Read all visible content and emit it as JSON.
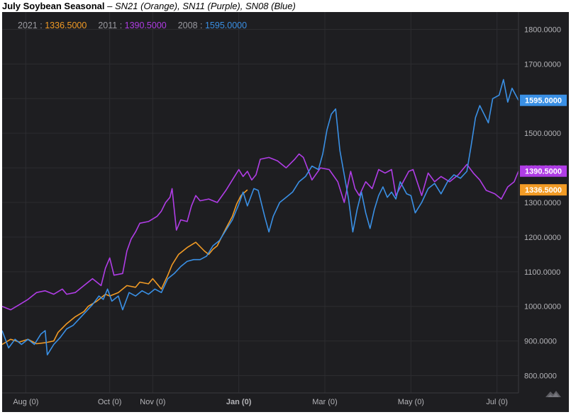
{
  "header": {
    "title": "July Soybean Seasonal",
    "separator": " – ",
    "subtitle": "SN21 (Orange), SN11 (Purple), SN08 (Blue)"
  },
  "chart_data": {
    "type": "line",
    "title": "July Soybean Seasonal",
    "subtitle": "SN21 (Orange), SN11 (Purple), SN08 (Blue)",
    "xlabel": "",
    "ylabel": "",
    "ylim": [
      750,
      1850
    ],
    "xlim": [
      0,
      12
    ],
    "x_ticks": [
      {
        "label": "Aug (0)",
        "x": 0.55
      },
      {
        "label": "Oct (0)",
        "x": 2.5
      },
      {
        "label": "Nov (0)",
        "x": 3.5
      },
      {
        "label": "Jan (0)",
        "x": 5.5
      },
      {
        "label": "Mar (0)",
        "x": 7.5
      },
      {
        "label": "May (0)",
        "x": 9.5
      },
      {
        "label": "Jul (0)",
        "x": 11.5
      }
    ],
    "y_ticks": [
      800,
      900,
      1000,
      1100,
      1200,
      1300,
      1400,
      1500,
      1600,
      1700,
      1800
    ],
    "y_tick_labels": [
      "800.0000",
      "900.0000",
      "1000.0000",
      "1100.0000",
      "1200.0000",
      "1300.0000",
      "1400.0000",
      "1500.0000",
      "1600.0000",
      "1700.0000",
      "1800.0000"
    ],
    "grid": true,
    "legend_position": "top-left",
    "series": [
      {
        "name": "2021",
        "last_value_label": "1336.5000",
        "color": "#f29b25",
        "points": [
          [
            0.0,
            890
          ],
          [
            0.2,
            905
          ],
          [
            0.4,
            897
          ],
          [
            0.6,
            905
          ],
          [
            0.8,
            892
          ],
          [
            1.0,
            895
          ],
          [
            1.2,
            900
          ],
          [
            1.3,
            925
          ],
          [
            1.5,
            950
          ],
          [
            1.7,
            970
          ],
          [
            1.9,
            985
          ],
          [
            2.0,
            1000
          ],
          [
            2.2,
            1015
          ],
          [
            2.4,
            1035
          ],
          [
            2.5,
            1030
          ],
          [
            2.7,
            1040
          ],
          [
            2.9,
            1060
          ],
          [
            3.1,
            1055
          ],
          [
            3.2,
            1070
          ],
          [
            3.4,
            1065
          ],
          [
            3.5,
            1080
          ],
          [
            3.7,
            1050
          ],
          [
            3.85,
            1090
          ],
          [
            3.95,
            1120
          ],
          [
            4.1,
            1150
          ],
          [
            4.3,
            1170
          ],
          [
            4.5,
            1185
          ],
          [
            4.7,
            1160
          ],
          [
            4.8,
            1150
          ],
          [
            4.9,
            1165
          ],
          [
            5.0,
            1175
          ],
          [
            5.2,
            1225
          ],
          [
            5.35,
            1260
          ],
          [
            5.45,
            1295
          ],
          [
            5.55,
            1320
          ],
          [
            5.7,
            1336.5
          ]
        ]
      },
      {
        "name": "2011",
        "last_value_label": "1390.5000",
        "color": "#b03de6",
        "points": [
          [
            0.0,
            1000
          ],
          [
            0.2,
            990
          ],
          [
            0.4,
            1005
          ],
          [
            0.6,
            1020
          ],
          [
            0.8,
            1040
          ],
          [
            1.0,
            1045
          ],
          [
            1.2,
            1035
          ],
          [
            1.4,
            1050
          ],
          [
            1.5,
            1035
          ],
          [
            1.7,
            1040
          ],
          [
            1.9,
            1060
          ],
          [
            2.1,
            1080
          ],
          [
            2.3,
            1060
          ],
          [
            2.4,
            1110
          ],
          [
            2.5,
            1140
          ],
          [
            2.6,
            1090
          ],
          [
            2.8,
            1095
          ],
          [
            2.9,
            1160
          ],
          [
            3.0,
            1195
          ],
          [
            3.1,
            1215
          ],
          [
            3.2,
            1240
          ],
          [
            3.4,
            1245
          ],
          [
            3.6,
            1260
          ],
          [
            3.7,
            1275
          ],
          [
            3.8,
            1300
          ],
          [
            3.9,
            1315
          ],
          [
            3.95,
            1340
          ],
          [
            4.05,
            1220
          ],
          [
            4.15,
            1250
          ],
          [
            4.3,
            1245
          ],
          [
            4.4,
            1290
          ],
          [
            4.5,
            1320
          ],
          [
            4.6,
            1305
          ],
          [
            4.8,
            1310
          ],
          [
            5.0,
            1300
          ],
          [
            5.2,
            1335
          ],
          [
            5.4,
            1375
          ],
          [
            5.5,
            1395
          ],
          [
            5.6,
            1375
          ],
          [
            5.7,
            1390
          ],
          [
            5.8,
            1365
          ],
          [
            5.9,
            1380
          ],
          [
            6.0,
            1425
          ],
          [
            6.2,
            1430
          ],
          [
            6.4,
            1420
          ],
          [
            6.6,
            1400
          ],
          [
            6.8,
            1425
          ],
          [
            6.9,
            1440
          ],
          [
            7.0,
            1430
          ],
          [
            7.2,
            1365
          ],
          [
            7.4,
            1400
          ],
          [
            7.6,
            1395
          ],
          [
            7.8,
            1360
          ],
          [
            7.95,
            1300
          ],
          [
            8.1,
            1390
          ],
          [
            8.2,
            1340
          ],
          [
            8.3,
            1320
          ],
          [
            8.45,
            1360
          ],
          [
            8.6,
            1340
          ],
          [
            8.75,
            1395
          ],
          [
            8.9,
            1385
          ],
          [
            9.05,
            1395
          ],
          [
            9.15,
            1320
          ],
          [
            9.3,
            1355
          ],
          [
            9.45,
            1390
          ],
          [
            9.55,
            1395
          ],
          [
            9.75,
            1320
          ],
          [
            9.9,
            1385
          ],
          [
            10.05,
            1360
          ],
          [
            10.2,
            1375
          ],
          [
            10.4,
            1360
          ],
          [
            10.6,
            1380
          ],
          [
            10.8,
            1410
          ],
          [
            10.95,
            1385
          ],
          [
            11.1,
            1365
          ],
          [
            11.25,
            1335
          ],
          [
            11.45,
            1325
          ],
          [
            11.6,
            1310
          ],
          [
            11.75,
            1345
          ],
          [
            11.9,
            1360
          ],
          [
            12.0,
            1390.5
          ]
        ]
      },
      {
        "name": "2008",
        "last_value_label": "1595.0000",
        "color": "#3a90e5",
        "points": [
          [
            0.0,
            930
          ],
          [
            0.15,
            880
          ],
          [
            0.3,
            905
          ],
          [
            0.45,
            890
          ],
          [
            0.6,
            905
          ],
          [
            0.75,
            890
          ],
          [
            0.9,
            920
          ],
          [
            1.0,
            930
          ],
          [
            1.05,
            860
          ],
          [
            1.2,
            890
          ],
          [
            1.35,
            910
          ],
          [
            1.5,
            935
          ],
          [
            1.65,
            945
          ],
          [
            1.8,
            965
          ],
          [
            1.95,
            985
          ],
          [
            2.1,
            1005
          ],
          [
            2.25,
            1030
          ],
          [
            2.35,
            1020
          ],
          [
            2.45,
            1050
          ],
          [
            2.55,
            1015
          ],
          [
            2.7,
            1030
          ],
          [
            2.8,
            990
          ],
          [
            2.95,
            1040
          ],
          [
            3.1,
            1030
          ],
          [
            3.25,
            1045
          ],
          [
            3.4,
            1035
          ],
          [
            3.55,
            1050
          ],
          [
            3.7,
            1040
          ],
          [
            3.85,
            1080
          ],
          [
            4.0,
            1095
          ],
          [
            4.15,
            1115
          ],
          [
            4.3,
            1130
          ],
          [
            4.45,
            1135
          ],
          [
            4.6,
            1135
          ],
          [
            4.75,
            1145
          ],
          [
            4.9,
            1175
          ],
          [
            5.05,
            1190
          ],
          [
            5.2,
            1220
          ],
          [
            5.35,
            1250
          ],
          [
            5.5,
            1295
          ],
          [
            5.6,
            1330
          ],
          [
            5.7,
            1290
          ],
          [
            5.85,
            1340
          ],
          [
            5.95,
            1335
          ],
          [
            6.1,
            1260
          ],
          [
            6.2,
            1215
          ],
          [
            6.3,
            1260
          ],
          [
            6.45,
            1300
          ],
          [
            6.6,
            1315
          ],
          [
            6.75,
            1330
          ],
          [
            6.9,
            1360
          ],
          [
            7.05,
            1375
          ],
          [
            7.2,
            1405
          ],
          [
            7.35,
            1395
          ],
          [
            7.45,
            1440
          ],
          [
            7.55,
            1510
          ],
          [
            7.65,
            1555
          ],
          [
            7.75,
            1570
          ],
          [
            7.85,
            1450
          ],
          [
            7.95,
            1380
          ],
          [
            8.05,
            1310
          ],
          [
            8.15,
            1215
          ],
          [
            8.25,
            1280
          ],
          [
            8.35,
            1330
          ],
          [
            8.45,
            1270
          ],
          [
            8.55,
            1225
          ],
          [
            8.65,
            1280
          ],
          [
            8.75,
            1320
          ],
          [
            8.85,
            1345
          ],
          [
            8.95,
            1315
          ],
          [
            9.05,
            1330
          ],
          [
            9.15,
            1310
          ],
          [
            9.25,
            1360
          ],
          [
            9.4,
            1325
          ],
          [
            9.5,
            1320
          ],
          [
            9.6,
            1270
          ],
          [
            9.75,
            1300
          ],
          [
            9.9,
            1340
          ],
          [
            10.05,
            1355
          ],
          [
            10.2,
            1325
          ],
          [
            10.35,
            1360
          ],
          [
            10.5,
            1380
          ],
          [
            10.65,
            1370
          ],
          [
            10.8,
            1390
          ],
          [
            10.9,
            1465
          ],
          [
            11.0,
            1545
          ],
          [
            11.1,
            1580
          ],
          [
            11.2,
            1555
          ],
          [
            11.3,
            1530
          ],
          [
            11.4,
            1600
          ],
          [
            11.55,
            1610
          ],
          [
            11.65,
            1655
          ],
          [
            11.75,
            1590
          ],
          [
            11.85,
            1630
          ],
          [
            12.0,
            1595
          ]
        ]
      }
    ]
  },
  "tool_icon": "tradingview-logo-icon"
}
